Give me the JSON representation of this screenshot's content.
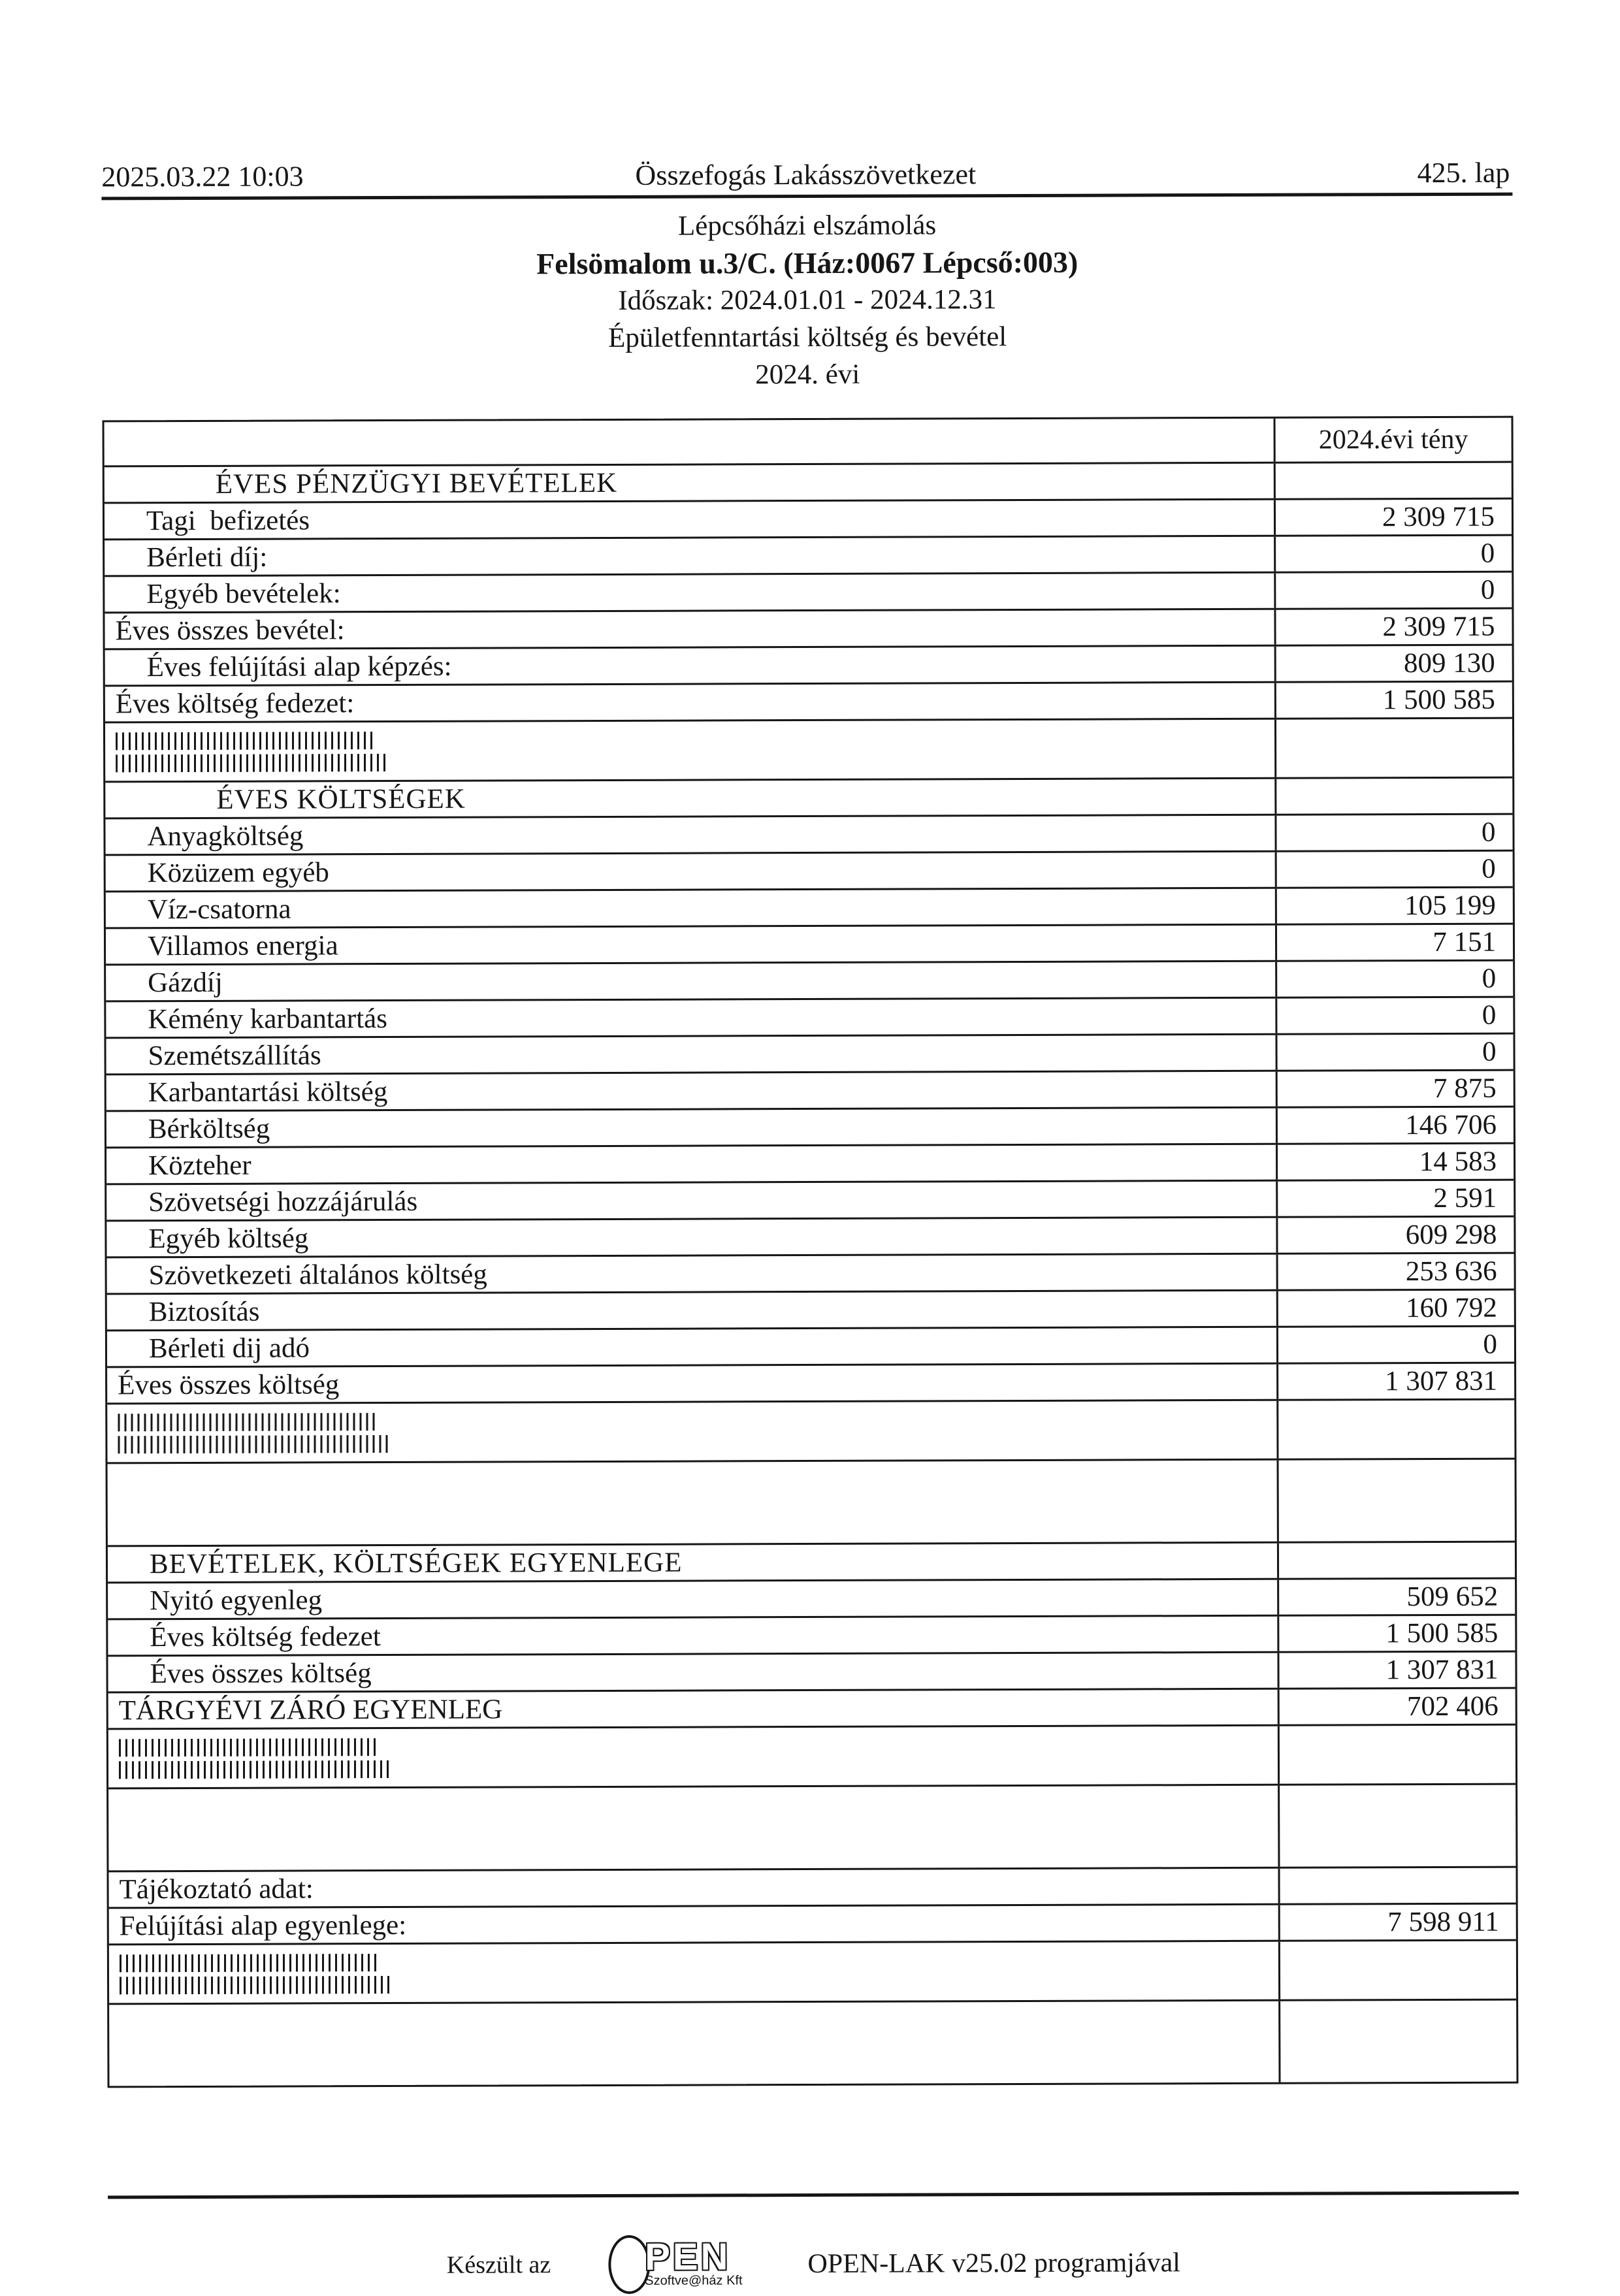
{
  "page_header": {
    "datetime": "2025.03.22 10:03",
    "organization": "Összefogás Lakásszövetkezet",
    "page_number": "425. lap"
  },
  "title_block": {
    "lines": [
      "Lépcsőházi elszámolás",
      "Felsömalom u.3/C. (Ház:0067 Lépcső:003)",
      "Időszak: 2024.01.01 - 2024.12.31",
      "Épületfenntartási költség és bevétel",
      "2024. évi"
    ]
  },
  "table": {
    "rows": [
      {
        "type": "colhead",
        "indent": 0,
        "label": "",
        "value": "2024.évi tény"
      },
      {
        "type": "section",
        "indent": 2,
        "label": "ÉVES PÉNZÜGYI BEVÉTELEK",
        "value": ""
      },
      {
        "type": "item",
        "indent": 1,
        "label": "Tagi  befizetés",
        "value": "2 309 715"
      },
      {
        "type": "item",
        "indent": 1,
        "label": "Bérleti díj:",
        "value": "0"
      },
      {
        "type": "item",
        "indent": 1,
        "label": "Egyéb bevételek:",
        "value": "0"
      },
      {
        "type": "total",
        "indent": 0,
        "label": "Éves összes bevétel:",
        "value": "2 309 715"
      },
      {
        "type": "item",
        "indent": 1,
        "label": "Éves felújítási alap képzés:",
        "value": "809 130"
      },
      {
        "type": "total",
        "indent": 0,
        "label": "Éves költség fedezet:",
        "value": "1 500 585"
      },
      {
        "type": "barcode",
        "indent": 0,
        "label": "",
        "value": ""
      },
      {
        "type": "section",
        "indent": 2,
        "label": "ÉVES KÖLTSÉGEK",
        "value": ""
      },
      {
        "type": "item",
        "indent": 1,
        "label": "Anyagköltség",
        "value": "0"
      },
      {
        "type": "item",
        "indent": 1,
        "label": "Közüzem egyéb",
        "value": "0"
      },
      {
        "type": "item",
        "indent": 1,
        "label": "Víz-csatorna",
        "value": "105 199"
      },
      {
        "type": "item",
        "indent": 1,
        "label": "Villamos energia",
        "value": "7 151"
      },
      {
        "type": "item",
        "indent": 1,
        "label": "Gázdíj",
        "value": "0"
      },
      {
        "type": "item",
        "indent": 1,
        "label": "Kémény karbantartás",
        "value": "0"
      },
      {
        "type": "item",
        "indent": 1,
        "label": "Szemétszállítás",
        "value": "0"
      },
      {
        "type": "item",
        "indent": 1,
        "label": "Karbantartási költség",
        "value": "7 875"
      },
      {
        "type": "item",
        "indent": 1,
        "label": "Bérköltség",
        "value": "146 706"
      },
      {
        "type": "item",
        "indent": 1,
        "label": "Közteher",
        "value": "14 583"
      },
      {
        "type": "item",
        "indent": 1,
        "label": "Szövetségi hozzájárulás",
        "value": "2 591"
      },
      {
        "type": "item",
        "indent": 1,
        "label": "Egyéb költség",
        "value": "609 298"
      },
      {
        "type": "item",
        "indent": 1,
        "label": "Szövetkezeti általános költség",
        "value": "253 636"
      },
      {
        "type": "item",
        "indent": 1,
        "label": "Biztosítás",
        "value": "160 792"
      },
      {
        "type": "item",
        "indent": 1,
        "label": "Bérleti dij adó",
        "value": "0"
      },
      {
        "type": "total",
        "indent": 0,
        "label": "Éves összes költség",
        "value": "1 307 831"
      },
      {
        "type": "barcode",
        "indent": 0,
        "label": "",
        "value": ""
      },
      {
        "type": "spacer",
        "indent": 0,
        "label": "",
        "value": ""
      },
      {
        "type": "section",
        "indent": 1,
        "label": "BEVÉTELEK, KÖLTSÉGEK EGYENLEGE",
        "value": ""
      },
      {
        "type": "item",
        "indent": 1,
        "label": "Nyitó egyenleg",
        "value": "509 652"
      },
      {
        "type": "item",
        "indent": 1,
        "label": "Éves költség fedezet",
        "value": "1 500 585"
      },
      {
        "type": "item",
        "indent": 1,
        "label": "Éves összes költség",
        "value": "1 307 831"
      },
      {
        "type": "total",
        "indent": 0,
        "label": "TÁRGYÉVI ZÁRÓ EGYENLEG",
        "value": "702 406"
      },
      {
        "type": "barcode",
        "indent": 0,
        "label": "",
        "value": ""
      },
      {
        "type": "spacer",
        "indent": 0,
        "label": "",
        "value": ""
      },
      {
        "type": "total",
        "indent": 0,
        "label": "Tájékoztató adat:",
        "value": ""
      },
      {
        "type": "total",
        "indent": 0,
        "label": "Felújítási alap egyenlege:",
        "value": "7 598 911"
      },
      {
        "type": "barcode",
        "indent": 0,
        "label": "",
        "value": ""
      },
      {
        "type": "spacer",
        "indent": 0,
        "label": "",
        "value": ""
      }
    ]
  },
  "footer": {
    "made_with": "Készült az",
    "logo": {
      "pen": "PEN",
      "subtext": "Szoftve@ház Kft"
    },
    "program": "OPEN-LAK v25.02 programjával"
  }
}
